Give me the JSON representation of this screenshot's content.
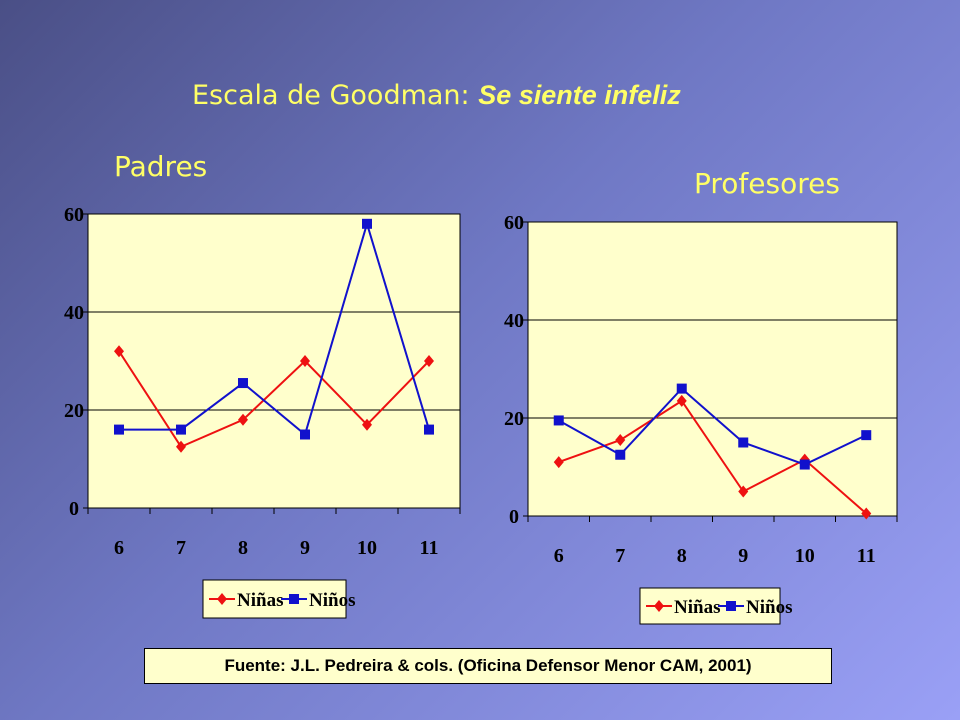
{
  "title": {
    "prefix": "Escala de Goodman: ",
    "emphasis": "Se siente infeliz"
  },
  "panels": {
    "left_label": "Padres",
    "right_label": "Profesores"
  },
  "source": "Fuente: J.L. Pedreira & cols. (Oficina Defensor Menor CAM, 2001)",
  "colors": {
    "title_text": "#ffff66",
    "plot_background": "#ffffcc",
    "ninas": "#ee1111",
    "ninos": "#1111cc"
  },
  "chart_data": [
    {
      "type": "line",
      "title": "Padres",
      "categories": [
        "6",
        "7",
        "8",
        "9",
        "10",
        "11"
      ],
      "ylim": [
        0,
        60
      ],
      "yticks": [
        "0",
        "20",
        "40",
        "60"
      ],
      "series": [
        {
          "name": "Niñas",
          "marker": "diamond",
          "values": [
            32,
            12.5,
            18,
            30,
            17,
            30
          ]
        },
        {
          "name": "Niños",
          "marker": "square",
          "values": [
            16,
            16,
            25.5,
            15,
            58,
            16
          ]
        }
      ],
      "grid": "horizontal",
      "legend": "bottom"
    },
    {
      "type": "line",
      "title": "Profesores",
      "categories": [
        "6",
        "7",
        "8",
        "9",
        "10",
        "11"
      ],
      "ylim": [
        0,
        60
      ],
      "yticks": [
        "0",
        "20",
        "40",
        "60"
      ],
      "series": [
        {
          "name": "Niñas",
          "marker": "diamond",
          "values": [
            11,
            15.5,
            23.5,
            5,
            11.5,
            0.5
          ]
        },
        {
          "name": "Niños",
          "marker": "square",
          "values": [
            19.5,
            12.5,
            26,
            15,
            10.5,
            16.5
          ]
        }
      ],
      "grid": "horizontal",
      "legend": "bottom"
    }
  ]
}
